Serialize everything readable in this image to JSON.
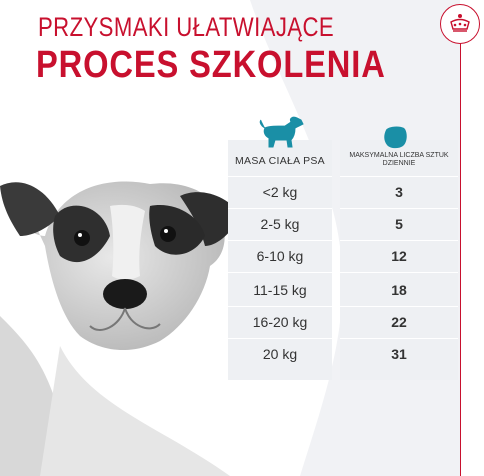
{
  "heading": {
    "line1": "PRZYSMAKI UŁATWIAJĄCE",
    "line2": "PROCES SZKOLENIA"
  },
  "colors": {
    "brand_red": "#c8102e",
    "table_bg": "#eef0f3",
    "icon_teal": "#1a8fa6"
  },
  "icons": {
    "brand": "crown-icon",
    "dog": "dog-icon",
    "treat": "treat-icon"
  },
  "table": {
    "headers": {
      "weight": "MASA CIAŁA PSA",
      "daily": "MAKSYMALNA LICZBA SZTUK DZIENNIE"
    },
    "rows": [
      {
        "weight": "<2 kg",
        "daily": "3"
      },
      {
        "weight": "2-5 kg",
        "daily": "5"
      },
      {
        "weight": "6-10 kg",
        "daily": "12"
      },
      {
        "weight": "11-15 kg",
        "daily": "18"
      },
      {
        "weight": "16-20 kg",
        "daily": "22"
      },
      {
        "weight": "20 kg",
        "daily": "31"
      }
    ]
  }
}
